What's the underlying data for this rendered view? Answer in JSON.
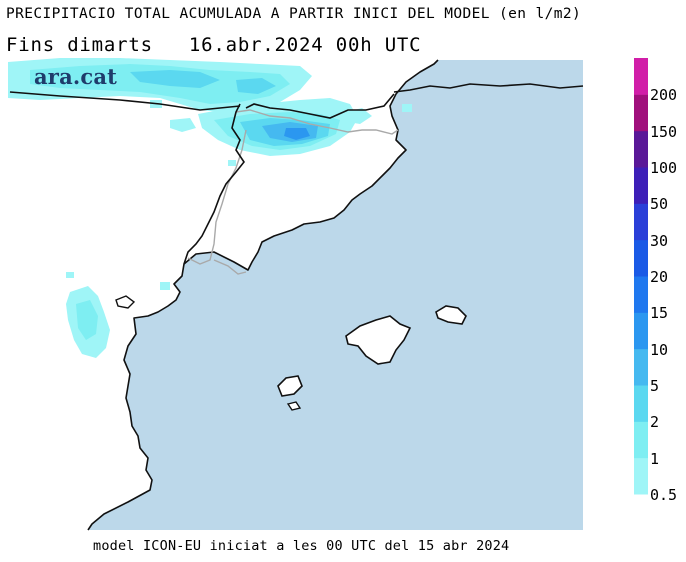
{
  "header": {
    "title": "PRECIPITACIO TOTAL ACUMULADA A PARTIR INICI DEL MODEL (en l/m2)",
    "period": "Fins dimarts",
    "date": "16.abr.2024 00h UTC"
  },
  "brand": {
    "logo_text": "ara.cat"
  },
  "footer": {
    "text": "model ICON-EU iniciat a les 00 UTC del 15 abr 2024"
  },
  "legend": {
    "unit": "l/m2",
    "levels": [
      "0.5",
      "1",
      "2",
      "5",
      "10",
      "15",
      "20",
      "30",
      "50",
      "100",
      "150",
      "200"
    ],
    "colors": [
      "#9ff5f7",
      "#7eeef2",
      "#5bd8f0",
      "#45b9f0",
      "#2b97f0",
      "#1f78ef",
      "#1a5ae6",
      "#2a3fd8",
      "#3d1fb8",
      "#5a1898",
      "#a0107c",
      "#d11ea8"
    ]
  },
  "map": {
    "sea_color": "#bcd8ea",
    "land_color": "#ffffff",
    "coast_color": "#111111",
    "border_color": "#a9a9a9"
  }
}
